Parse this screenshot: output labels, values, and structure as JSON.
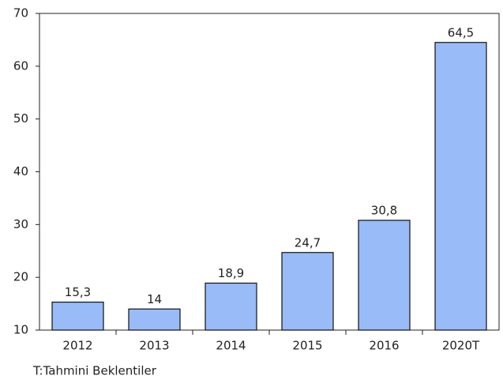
{
  "chart_data": {
    "type": "bar",
    "categories": [
      "2012",
      "2013",
      "2014",
      "2015",
      "2016",
      "2020T"
    ],
    "values": [
      15.3,
      14,
      18.9,
      24.7,
      30.8,
      64.5
    ],
    "value_labels": [
      "15,3",
      "14",
      "18,9",
      "24,7",
      "30,8",
      "64,5"
    ],
    "color": "#99bbf8",
    "ylim": [
      10,
      70
    ],
    "yticks": [
      10,
      20,
      30,
      40,
      50,
      60,
      70
    ],
    "note": "T:Tahmini Beklentiler"
  }
}
